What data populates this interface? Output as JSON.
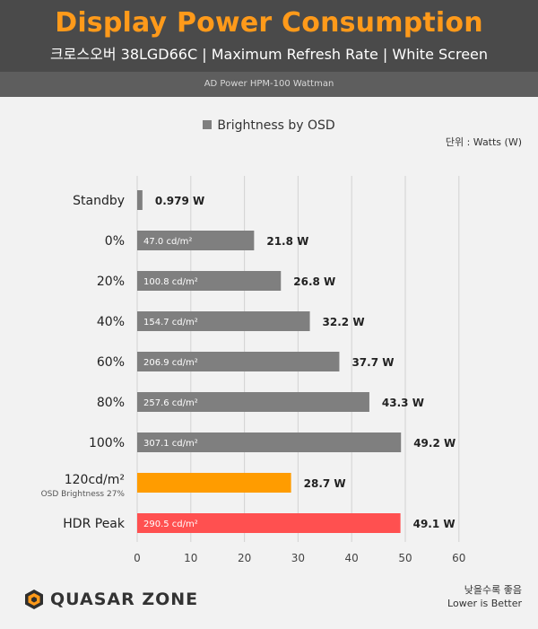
{
  "header": {
    "title": "Display Power Consumption",
    "subtitle": "크로스오버 38LGD66C  |  Maximum Refresh Rate  |  White Screen",
    "device": "AD Power HPM-100 Wattman"
  },
  "legend_label": "Brightness by OSD",
  "unit_label": "단위 : Watts (W)",
  "logo": {
    "text": "QUASAR ZONE"
  },
  "note": {
    "korean": "낮을수록 좋음",
    "english": "Lower is Better"
  },
  "colors": {
    "gray": "#7f7f7f",
    "orange": "#ff9c00",
    "red": "#ff5050",
    "accent": "#ff9a1a"
  },
  "chart_data": {
    "type": "bar",
    "orientation": "horizontal",
    "xlim": [
      0,
      60
    ],
    "x_ticks": [
      0,
      10,
      20,
      30,
      40,
      50,
      60
    ],
    "grid": true,
    "categories": [
      "Standby",
      "0%",
      "20%",
      "40%",
      "60%",
      "80%",
      "100%",
      "120cd/m²",
      "HDR Peak"
    ],
    "category_sublabels": [
      "",
      "",
      "",
      "",
      "",
      "",
      "",
      "OSD Brightness 27%",
      ""
    ],
    "values": [
      0.979,
      21.8,
      26.8,
      32.2,
      37.7,
      43.3,
      49.2,
      28.7,
      49.1
    ],
    "value_labels": [
      "0.979 W",
      "21.8 W",
      "26.8 W",
      "32.2 W",
      "37.7 W",
      "43.3 W",
      "49.2 W",
      "28.7 W",
      "49.1 W"
    ],
    "inner_labels": [
      "",
      "47.0 cd/m²",
      "100.8 cd/m²",
      "154.7 cd/m²",
      "206.9 cd/m²",
      "257.6 cd/m²",
      "307.1 cd/m²",
      "",
      "290.5 cd/m²"
    ],
    "bar_colors": [
      "gray",
      "gray",
      "gray",
      "gray",
      "gray",
      "gray",
      "gray",
      "orange",
      "red"
    ]
  }
}
